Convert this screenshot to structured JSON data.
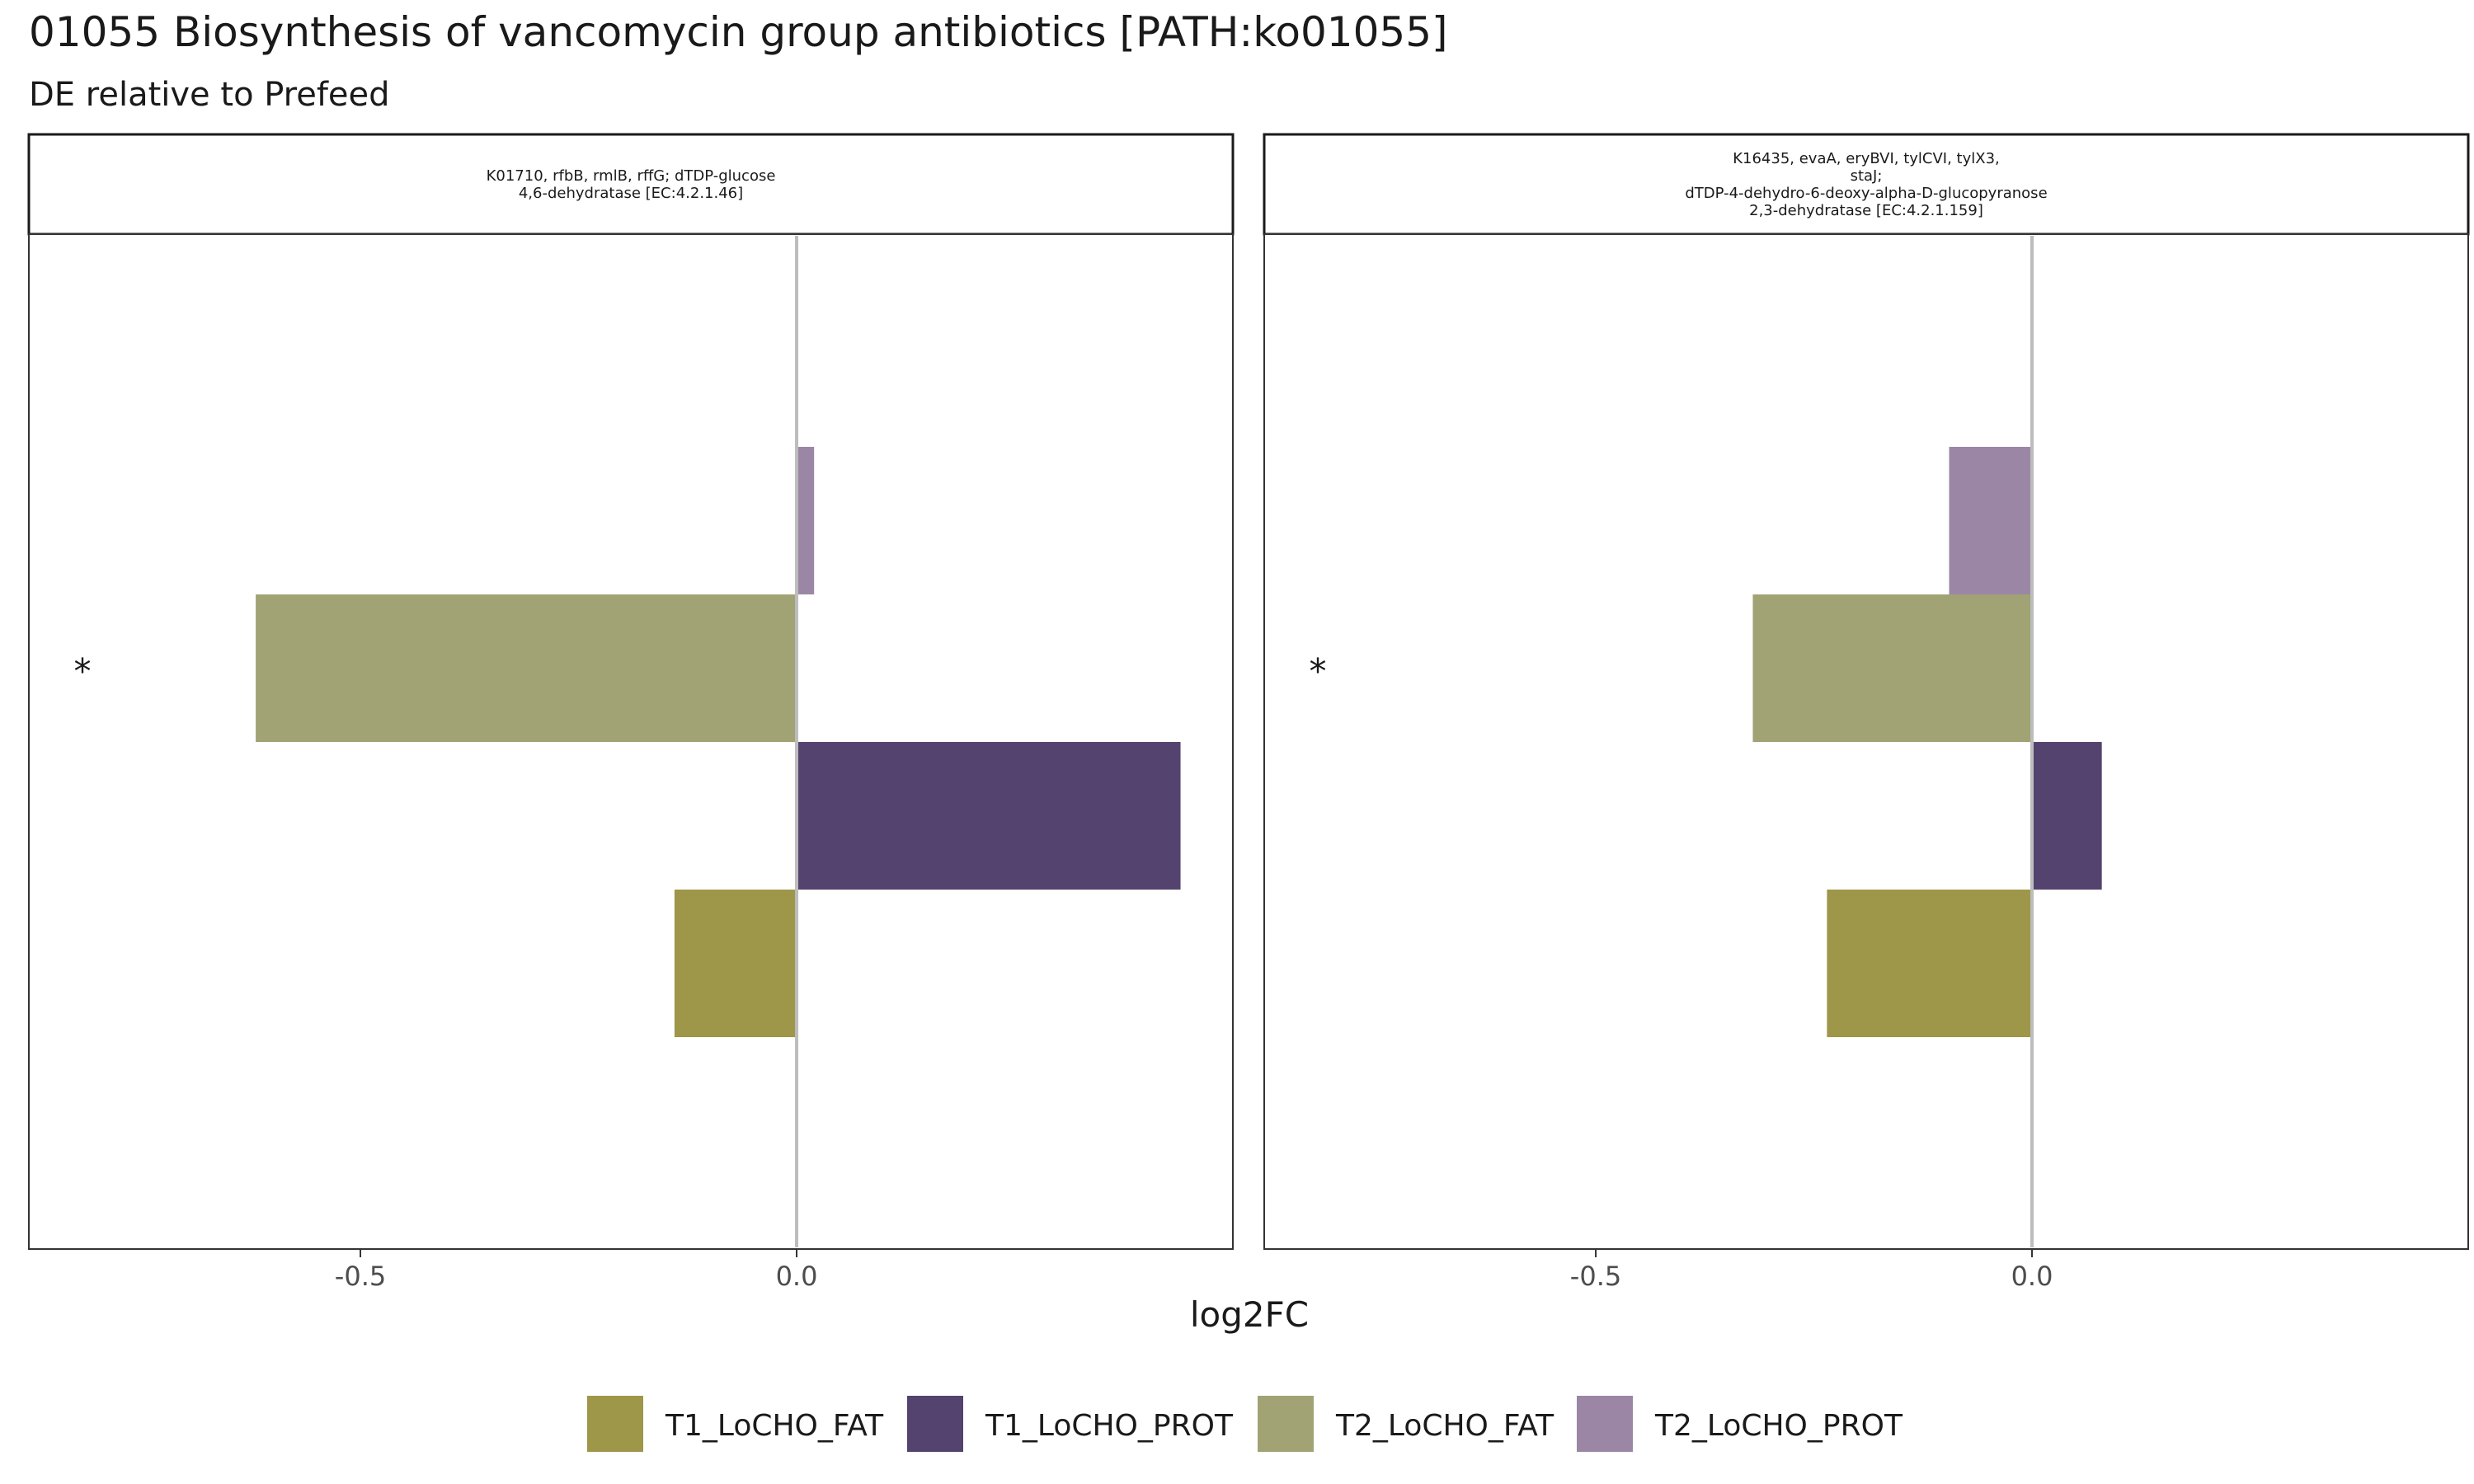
{
  "title": "01055 Biosynthesis of vancomycin group antibiotics [PATH:ko01055]",
  "subtitle": "DE relative to Prefeed",
  "x_axis_label": "log2FC",
  "legend": [
    {
      "label": "T1_LoCHO_FAT",
      "color": "#9e9649"
    },
    {
      "label": "T1_LoCHO_PROT",
      "color": "#53436e"
    },
    {
      "label": "T2_LoCHO_FAT",
      "color": "#a2a375"
    },
    {
      "label": "T2_LoCHO_PROT",
      "color": "#9b87a5"
    }
  ],
  "chart_data": [
    {
      "type": "bar",
      "orientation": "horizontal",
      "facet_title": [
        "K01710, rfbB, rmlB, rffG; dTDP-glucose",
        "4,6-dehydratase [EC:4.2.1.46]"
      ],
      "xlabel": "log2FC",
      "x_ticks": [
        -0.5,
        0.0
      ],
      "x_tick_labels": [
        "-0.5",
        "0.0"
      ],
      "xlim": [
        -0.88,
        0.5
      ],
      "series": [
        {
          "name": "T2_LoCHO_PROT",
          "value": 0.02,
          "color": "#9b87a5"
        },
        {
          "name": "T2_LoCHO_FAT",
          "value": -0.62,
          "color": "#a2a375",
          "significance": "*"
        },
        {
          "name": "T1_LoCHO_PROT",
          "value": 0.44,
          "color": "#53436e"
        },
        {
          "name": "T1_LoCHO_FAT",
          "value": -0.14,
          "color": "#9e9649"
        }
      ]
    },
    {
      "type": "bar",
      "orientation": "horizontal",
      "facet_title": [
        "K16435, evaA, eryBVI, tylCVI, tylX3,",
        "staJ;",
        "dTDP-4-dehydro-6-deoxy-alpha-D-glucopyranose",
        "2,3-dehydratase [EC:4.2.1.159]"
      ],
      "xlabel": "log2FC",
      "x_ticks": [
        -0.5,
        0.0
      ],
      "x_tick_labels": [
        "-0.5",
        "0.0"
      ],
      "xlim": [
        -0.88,
        0.5
      ],
      "series": [
        {
          "name": "T2_LoCHO_PROT",
          "value": -0.095,
          "color": "#9b87a5"
        },
        {
          "name": "T2_LoCHO_FAT",
          "value": -0.32,
          "color": "#a2a375",
          "significance": "*"
        },
        {
          "name": "T1_LoCHO_PROT",
          "value": 0.08,
          "color": "#53436e"
        },
        {
          "name": "T1_LoCHO_FAT",
          "value": -0.235,
          "color": "#9e9649"
        }
      ]
    }
  ]
}
